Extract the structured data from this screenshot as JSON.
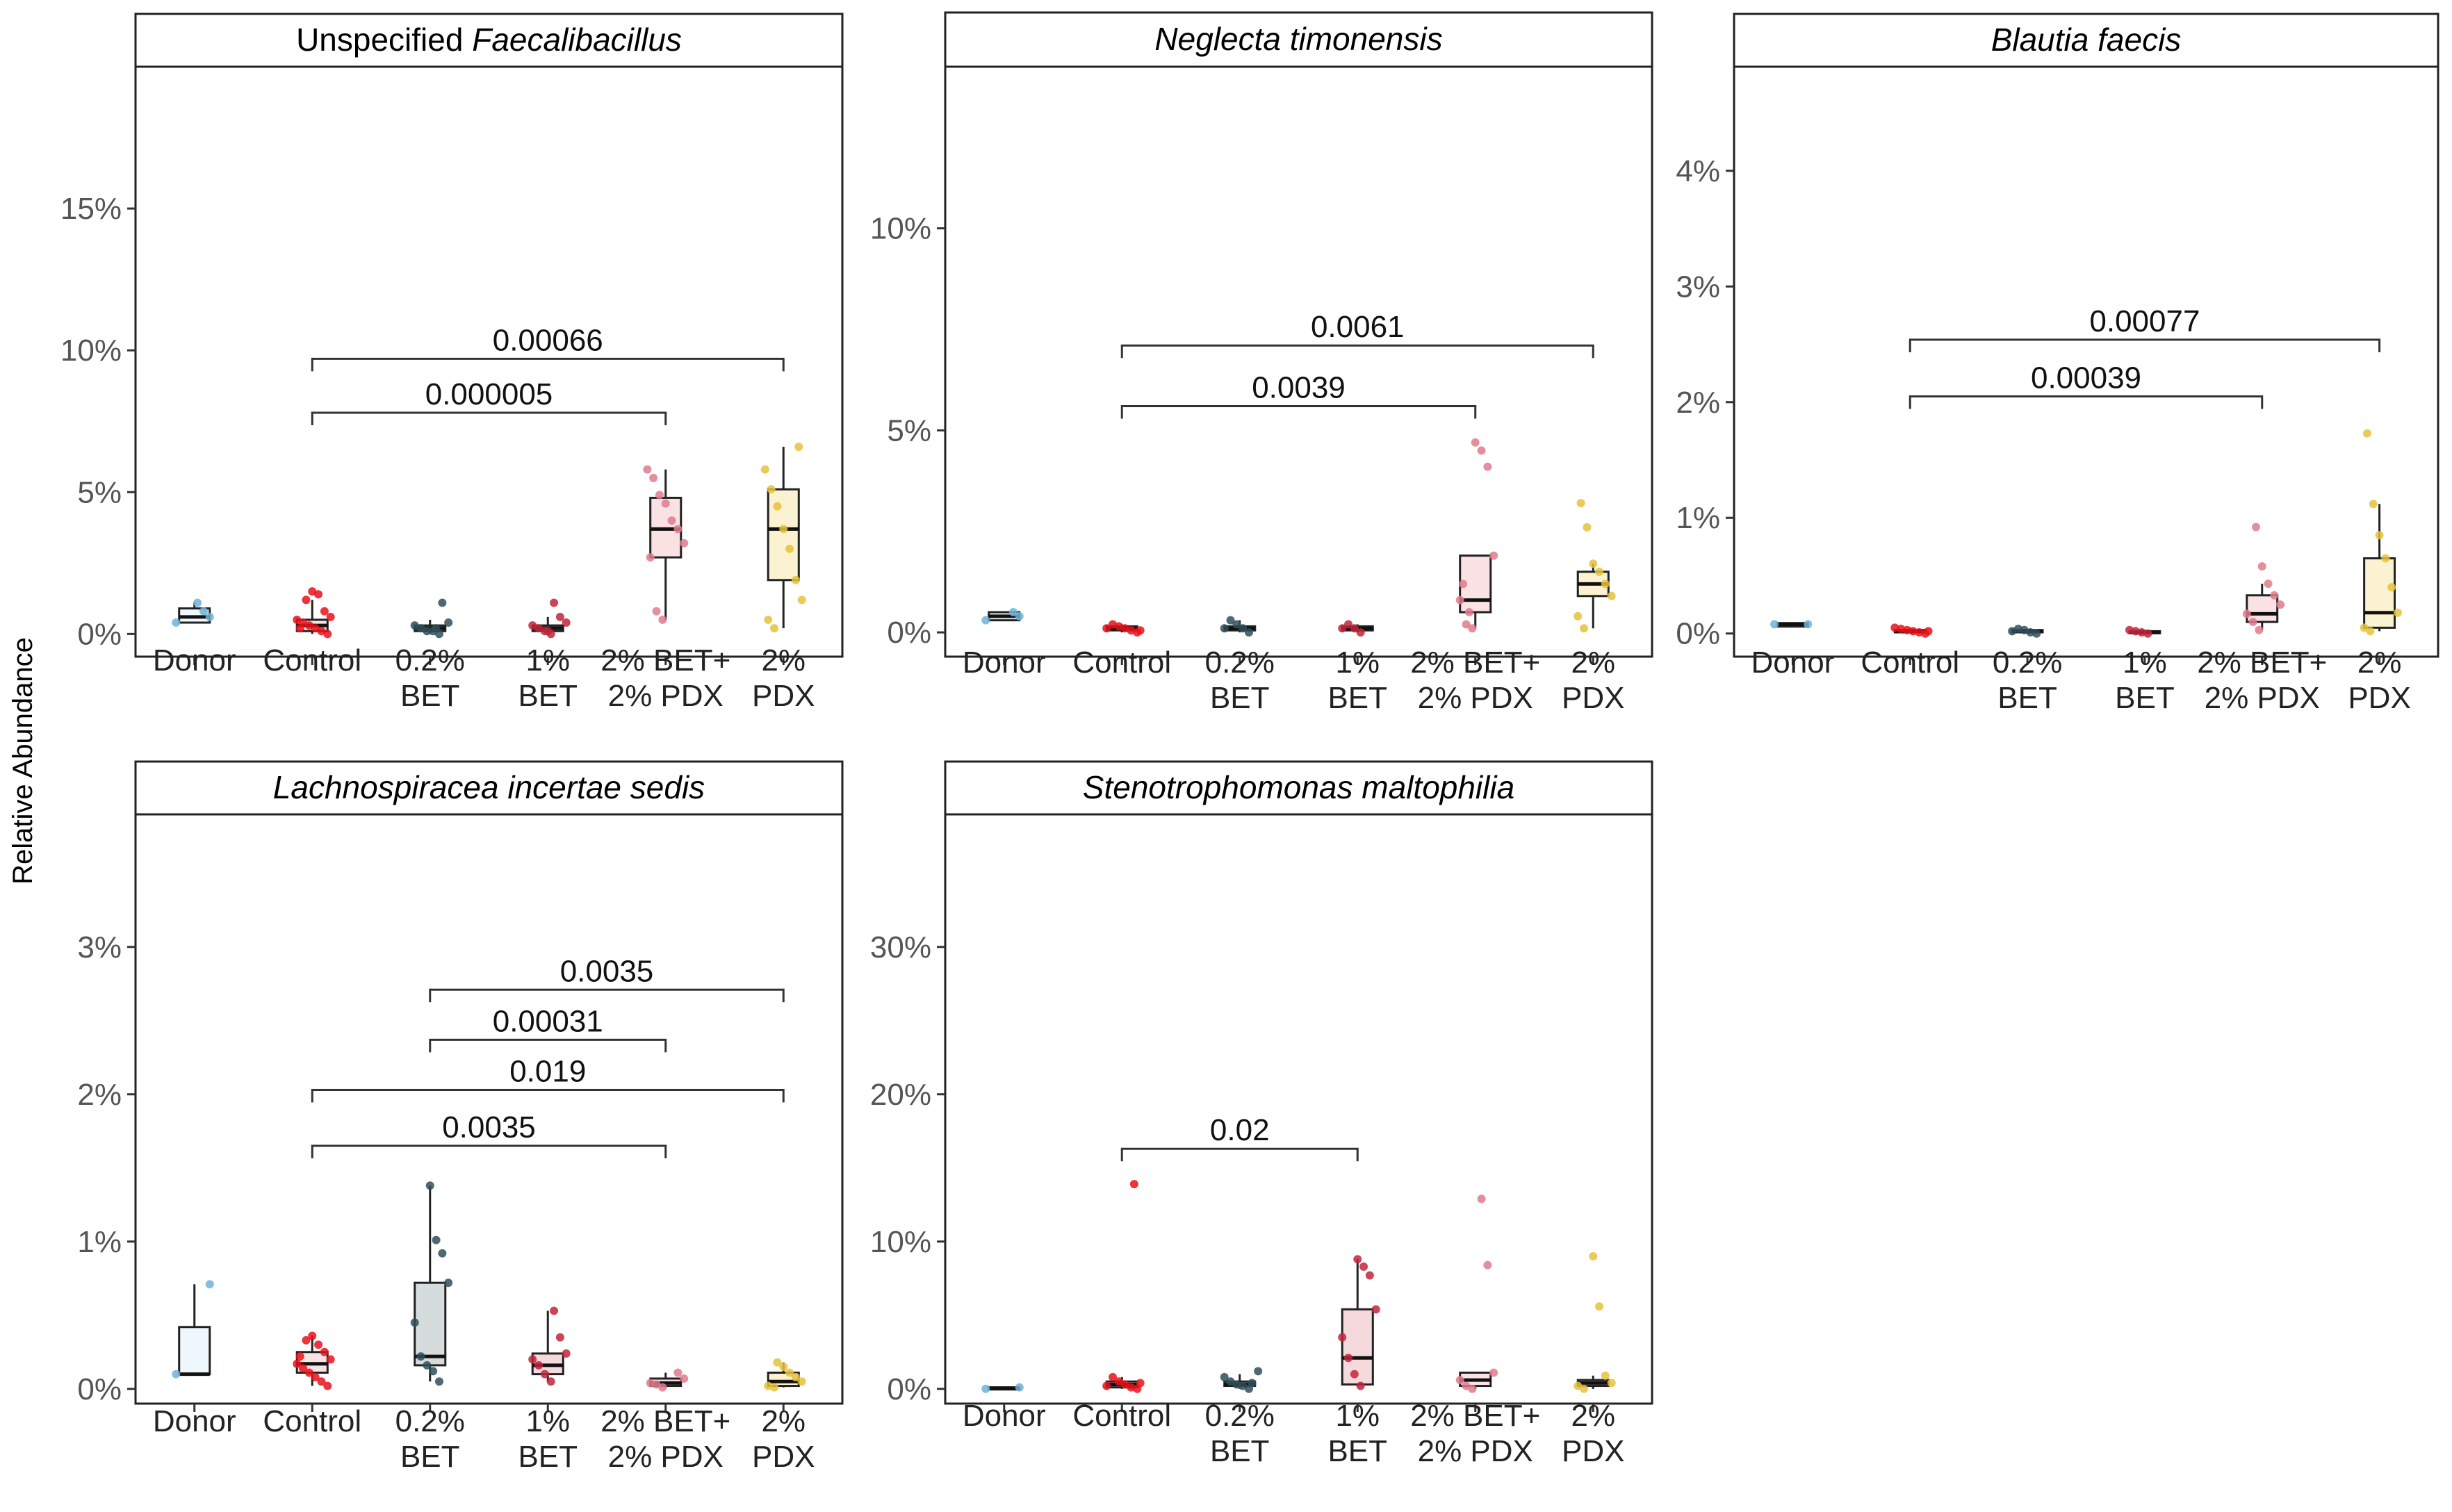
{
  "figure": {
    "ylabel": "Relative Abundance"
  },
  "colors": {
    "Donor": "#6fb3d6",
    "Control": "#e8111a",
    "0.2% BET": "#2f4f58",
    "1% BET": "#c0243a",
    "2% BET+ 2% PDX": "#e07b8d",
    "2% PDX": "#e6c23c",
    "box_Donor": "#eef7fb",
    "box_Control": "#fbe3e3",
    "box_0.2% BET": "#d6dcdc",
    "box_1% BET": "#f6d9dd",
    "box_2% BET+ 2% PDX": "#f9e1e4",
    "box_2% PDX": "#fbf2d2"
  },
  "chart_data": [
    {
      "type": "boxplot",
      "title_prefix": "Unspecified",
      "title_italic": "Faecalibacillus",
      "ylabel": "Relative Abundance",
      "categories": [
        "Donor",
        "Control",
        "0.2% BET",
        "1% BET",
        "2% BET+ 2% PDX",
        "2% PDX"
      ],
      "tick_labels": [
        [
          "Donor"
        ],
        [
          "Control"
        ],
        [
          "0.2%",
          "BET"
        ],
        [
          "1%",
          "BET"
        ],
        [
          "2% BET+",
          "2% PDX"
        ],
        [
          "2%",
          "PDX"
        ]
      ],
      "ylim": [
        -0.008,
        0.2
      ],
      "yticks": [
        0,
        0.05,
        0.1,
        0.15
      ],
      "ytick_labels": [
        "0%",
        "5%",
        "10%",
        "15%"
      ],
      "boxes": [
        {
          "q1": 0.004,
          "median": 0.006,
          "q3": 0.009,
          "low": 0.004,
          "high": 0.011
        },
        {
          "q1": 0.001,
          "median": 0.003,
          "q3": 0.005,
          "low": 0.0,
          "high": 0.012
        },
        {
          "q1": 0.001,
          "median": 0.002,
          "q3": 0.003,
          "low": 0.0,
          "high": 0.005
        },
        {
          "q1": 0.001,
          "median": 0.002,
          "q3": 0.003,
          "low": 0.0,
          "high": 0.006
        },
        {
          "q1": 0.027,
          "median": 0.037,
          "q3": 0.048,
          "low": 0.005,
          "high": 0.058
        },
        {
          "q1": 0.019,
          "median": 0.037,
          "q3": 0.051,
          "low": 0.002,
          "high": 0.066
        }
      ],
      "points": [
        [
          0.004,
          0.006,
          0.008,
          0.011
        ],
        [
          0.0,
          0.001,
          0.002,
          0.003,
          0.004,
          0.005,
          0.006,
          0.008,
          0.014,
          0.015,
          0.012,
          0.002
        ],
        [
          0.0,
          0.001,
          0.001,
          0.002,
          0.003,
          0.004,
          0.011,
          0.002
        ],
        [
          0.0,
          0.001,
          0.002,
          0.003,
          0.004,
          0.006,
          0.011,
          0.001
        ],
        [
          0.005,
          0.008,
          0.027,
          0.032,
          0.037,
          0.04,
          0.046,
          0.049,
          0.055,
          0.058
        ],
        [
          0.002,
          0.005,
          0.012,
          0.019,
          0.03,
          0.037,
          0.045,
          0.051,
          0.058,
          0.066
        ]
      ],
      "comparisons": [
        {
          "from": 1,
          "to": 4,
          "label": "0.000005",
          "y": 0.078
        },
        {
          "from": 1,
          "to": 5,
          "label": "0.00066",
          "y": 0.097
        }
      ]
    },
    {
      "type": "boxplot",
      "title_prefix": "",
      "title_italic": "Neglecta timonensis",
      "ylabel": "Relative Abundance",
      "categories": [
        "Donor",
        "Control",
        "0.2% BET",
        "1% BET",
        "2% BET+ 2% PDX",
        "2% PDX"
      ],
      "tick_labels": [
        [
          "Donor"
        ],
        [
          "Control"
        ],
        [
          "0.2%",
          "BET"
        ],
        [
          "1%",
          "BET"
        ],
        [
          "2% BET+",
          "2% PDX"
        ],
        [
          "2%",
          "PDX"
        ]
      ],
      "ylim": [
        -0.006,
        0.14
      ],
      "yticks": [
        0,
        0.05,
        0.1
      ],
      "ytick_labels": [
        "0%",
        "5%",
        "10%"
      ],
      "boxes": [
        {
          "q1": 0.003,
          "median": 0.004,
          "q3": 0.005,
          "low": 0.003,
          "high": 0.005
        },
        {
          "q1": 0.0005,
          "median": 0.001,
          "q3": 0.0015,
          "low": 0.0,
          "high": 0.002
        },
        {
          "q1": 0.0005,
          "median": 0.001,
          "q3": 0.0015,
          "low": 0.0,
          "high": 0.003
        },
        {
          "q1": 0.0005,
          "median": 0.001,
          "q3": 0.0015,
          "low": 0.0,
          "high": 0.002
        },
        {
          "q1": 0.005,
          "median": 0.008,
          "q3": 0.019,
          "low": 0.001,
          "high": 0.019
        },
        {
          "q1": 0.009,
          "median": 0.012,
          "q3": 0.015,
          "low": 0.001,
          "high": 0.017
        }
      ],
      "points": [
        [
          0.003,
          0.004,
          0.005
        ],
        [
          0.0,
          0.0005,
          0.001,
          0.0015,
          0.002,
          0.001,
          0.0005
        ],
        [
          0.0,
          0.001,
          0.002,
          0.003,
          0.001
        ],
        [
          0.0,
          0.001,
          0.002,
          0.001
        ],
        [
          0.001,
          0.002,
          0.008,
          0.019,
          0.041,
          0.045,
          0.047,
          0.005,
          0.012
        ],
        [
          0.001,
          0.004,
          0.009,
          0.012,
          0.015,
          0.017,
          0.026,
          0.032
        ]
      ],
      "comparisons": [
        {
          "from": 1,
          "to": 4,
          "label": "0.0039",
          "y": 0.056
        },
        {
          "from": 1,
          "to": 5,
          "label": "0.0061",
          "y": 0.071
        }
      ]
    },
    {
      "type": "boxplot",
      "title_prefix": "",
      "title_italic": "Blautia faecis",
      "ylabel": "Relative Abundance",
      "categories": [
        "Donor",
        "Control",
        "0.2% BET",
        "1% BET",
        "2% BET+ 2% PDX",
        "2% PDX"
      ],
      "tick_labels": [
        [
          "Donor"
        ],
        [
          "Control"
        ],
        [
          "0.2%",
          "BET"
        ],
        [
          "1%",
          "BET"
        ],
        [
          "2% BET+",
          "2% PDX"
        ],
        [
          "2%",
          "PDX"
        ]
      ],
      "ylim": [
        -0.002,
        0.049
      ],
      "yticks": [
        0,
        0.01,
        0.02,
        0.03,
        0.04
      ],
      "ytick_labels": [
        "0%",
        "1%",
        "2%",
        "3%",
        "4%"
      ],
      "boxes": [
        {
          "q1": 0.0006,
          "median": 0.0008,
          "q3": 0.0009,
          "low": 0.0006,
          "high": 0.0009
        },
        {
          "q1": 0.0001,
          "median": 0.0002,
          "q3": 0.0003,
          "low": 0.0,
          "high": 0.0005
        },
        {
          "q1": 0.0001,
          "median": 0.0002,
          "q3": 0.0003,
          "low": 0.0,
          "high": 0.0004
        },
        {
          "q1": 0.0001,
          "median": 0.0001,
          "q3": 0.0002,
          "low": 0.0,
          "high": 0.0003
        },
        {
          "q1": 0.001,
          "median": 0.0017,
          "q3": 0.0033,
          "low": 0.0003,
          "high": 0.0043
        },
        {
          "q1": 0.0005,
          "median": 0.0018,
          "q3": 0.0065,
          "low": 0.0002,
          "high": 0.0112
        }
      ],
      "points": [
        [
          0.0008,
          0.0008
        ],
        [
          0.0,
          0.0001,
          0.0002,
          0.0003,
          0.0004,
          0.0005,
          0.0002
        ],
        [
          0.0,
          0.0001,
          0.0003,
          0.0004,
          0.0002
        ],
        [
          0.0,
          0.0001,
          0.0002,
          0.0003
        ],
        [
          0.0003,
          0.001,
          0.0017,
          0.0025,
          0.0033,
          0.0043,
          0.0058,
          0.0092
        ],
        [
          0.0002,
          0.0005,
          0.0018,
          0.004,
          0.0065,
          0.0085,
          0.0112,
          0.0173
        ]
      ],
      "comparisons": [
        {
          "from": 1,
          "to": 4,
          "label": "0.00039",
          "y": 0.0205
        },
        {
          "from": 1,
          "to": 5,
          "label": "0.00077",
          "y": 0.0254
        }
      ]
    },
    {
      "type": "boxplot",
      "title_prefix": "",
      "title_italic": "Lachnospiracea incertae sedis",
      "ylabel": "Relative Abundance",
      "categories": [
        "Donor",
        "Control",
        "0.2% BET",
        "1% BET",
        "2% BET+ 2% PDX",
        "2% PDX"
      ],
      "tick_labels": [
        [
          "Donor"
        ],
        [
          "Control"
        ],
        [
          "0.2%",
          "BET"
        ],
        [
          "1%",
          "BET"
        ],
        [
          "2% BET+",
          "2% PDX"
        ],
        [
          "2%",
          "PDX"
        ]
      ],
      "ylim": [
        -0.001,
        0.039
      ],
      "yticks": [
        0,
        0.01,
        0.02,
        0.03
      ],
      "ytick_labels": [
        "0%",
        "1%",
        "2%",
        "3%"
      ],
      "boxes": [
        {
          "q1": 0.001,
          "median": 0.001,
          "q3": 0.0042,
          "low": 0.001,
          "high": 0.0071
        },
        {
          "q1": 0.0011,
          "median": 0.0017,
          "q3": 0.0025,
          "low": 0.0002,
          "high": 0.0036
        },
        {
          "q1": 0.0016,
          "median": 0.0022,
          "q3": 0.0072,
          "low": 0.0005,
          "high": 0.0138
        },
        {
          "q1": 0.001,
          "median": 0.0016,
          "q3": 0.0024,
          "low": 0.0005,
          "high": 0.0053
        },
        {
          "q1": 0.0002,
          "median": 0.0004,
          "q3": 0.0007,
          "low": 0.0001,
          "high": 0.0011
        },
        {
          "q1": 0.0002,
          "median": 0.0005,
          "q3": 0.0011,
          "low": 0.0001,
          "high": 0.0018
        }
      ],
      "points": [
        [
          0.001,
          0.0071
        ],
        [
          0.0002,
          0.0005,
          0.0008,
          0.0011,
          0.0014,
          0.0017,
          0.002,
          0.0025,
          0.003,
          0.0036,
          0.0033,
          0.0022
        ],
        [
          0.0005,
          0.0012,
          0.0016,
          0.0022,
          0.0045,
          0.0072,
          0.0092,
          0.0101,
          0.0138
        ],
        [
          0.0005,
          0.001,
          0.0016,
          0.002,
          0.0024,
          0.0035,
          0.0053
        ],
        [
          0.0001,
          0.0003,
          0.0004,
          0.0007,
          0.0011
        ],
        [
          0.0001,
          0.0002,
          0.0005,
          0.0008,
          0.0011,
          0.0015,
          0.0018
        ]
      ],
      "comparisons": [
        {
          "from": 1,
          "to": 4,
          "label": "0.0035",
          "y": 0.0165
        },
        {
          "from": 1,
          "to": 5,
          "label": "0.019",
          "y": 0.0203
        },
        {
          "from": 2,
          "to": 4,
          "label": "0.00031",
          "y": 0.0237
        },
        {
          "from": 2,
          "to": 5,
          "label": "0.0035",
          "y": 0.0271
        }
      ]
    },
    {
      "type": "boxplot",
      "title_prefix": "",
      "title_italic": "Stenotrophomonas maltophilia",
      "ylabel": "Relative Abundance",
      "categories": [
        "Donor",
        "Control",
        "0.2% BET",
        "1% BET",
        "2% BET+ 2% PDX",
        "2% PDX"
      ],
      "tick_labels": [
        [
          "Donor"
        ],
        [
          "Control"
        ],
        [
          "0.2%",
          "BET"
        ],
        [
          "1%",
          "BET"
        ],
        [
          "2% BET+",
          "2% PDX"
        ],
        [
          "2%",
          "PDX"
        ]
      ],
      "ylim": [
        -0.01,
        0.39
      ],
      "yticks": [
        0,
        0.1,
        0.2,
        0.3
      ],
      "ytick_labels": [
        "0%",
        "10%",
        "20%",
        "30%"
      ],
      "boxes": [
        {
          "q1": 0.0,
          "median": 0.0005,
          "q3": 0.001,
          "low": 0.0,
          "high": 0.001
        },
        {
          "q1": 0.001,
          "median": 0.003,
          "q3": 0.005,
          "low": 0.0,
          "high": 0.008
        },
        {
          "q1": 0.002,
          "median": 0.003,
          "q3": 0.005,
          "low": 0.0,
          "high": 0.01
        },
        {
          "q1": 0.003,
          "median": 0.021,
          "q3": 0.054,
          "low": 0.002,
          "high": 0.088
        },
        {
          "q1": 0.002,
          "median": 0.006,
          "q3": 0.011,
          "low": 0.0,
          "high": 0.011
        },
        {
          "q1": 0.002,
          "median": 0.004,
          "q3": 0.006,
          "low": 0.0,
          "high": 0.009
        }
      ],
      "points": [
        [
          0.0,
          0.001
        ],
        [
          0.0,
          0.001,
          0.003,
          0.005,
          0.008,
          0.002,
          0.004,
          0.139
        ],
        [
          0.0,
          0.002,
          0.003,
          0.005,
          0.008,
          0.012,
          0.004
        ],
        [
          0.002,
          0.01,
          0.021,
          0.035,
          0.054,
          0.077,
          0.083,
          0.088
        ],
        [
          0.0,
          0.002,
          0.006,
          0.011,
          0.084,
          0.129
        ],
        [
          0.0,
          0.002,
          0.004,
          0.009,
          0.056,
          0.09
        ]
      ],
      "comparisons": [
        {
          "from": 1,
          "to": 3,
          "label": "0.02",
          "y": 0.163
        }
      ]
    }
  ]
}
